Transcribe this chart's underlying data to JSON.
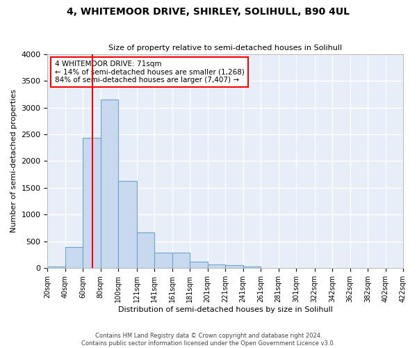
{
  "title": "4, WHITEMOOR DRIVE, SHIRLEY, SOLIHULL, B90 4UL",
  "subtitle": "Size of property relative to semi-detached houses in Solihull",
  "xlabel": "Distribution of semi-detached houses by size in Solihull",
  "ylabel": "Number of semi-detached properties",
  "bar_color": "#c8d9ef",
  "bar_edge_color": "#6aa3cc",
  "background_color": "#e8eef8",
  "grid_color": "#ffffff",
  "property_line_x": 71,
  "property_line_color": "red",
  "annotation_text": "4 WHITEMOOR DRIVE: 71sqm\n← 14% of semi-detached houses are smaller (1,268)\n84% of semi-detached houses are larger (7,407) →",
  "annotation_box_color": "white",
  "annotation_border_color": "red",
  "bin_edges": [
    20,
    40,
    60,
    80,
    100,
    121,
    141,
    161,
    181,
    201,
    221,
    241,
    261,
    281,
    301,
    322,
    342,
    362,
    382,
    402,
    422
  ],
  "bin_heights": [
    30,
    390,
    2430,
    3150,
    1630,
    670,
    285,
    285,
    115,
    65,
    55,
    30,
    0,
    0,
    0,
    0,
    0,
    0,
    0,
    0
  ],
  "ylim": [
    0,
    4000
  ],
  "xlim": [
    20,
    422
  ],
  "yticks": [
    0,
    500,
    1000,
    1500,
    2000,
    2500,
    3000,
    3500,
    4000
  ],
  "footnote": "Contains HM Land Registry data © Crown copyright and database right 2024.\nContains public sector information licensed under the Open Government Licence v3.0."
}
